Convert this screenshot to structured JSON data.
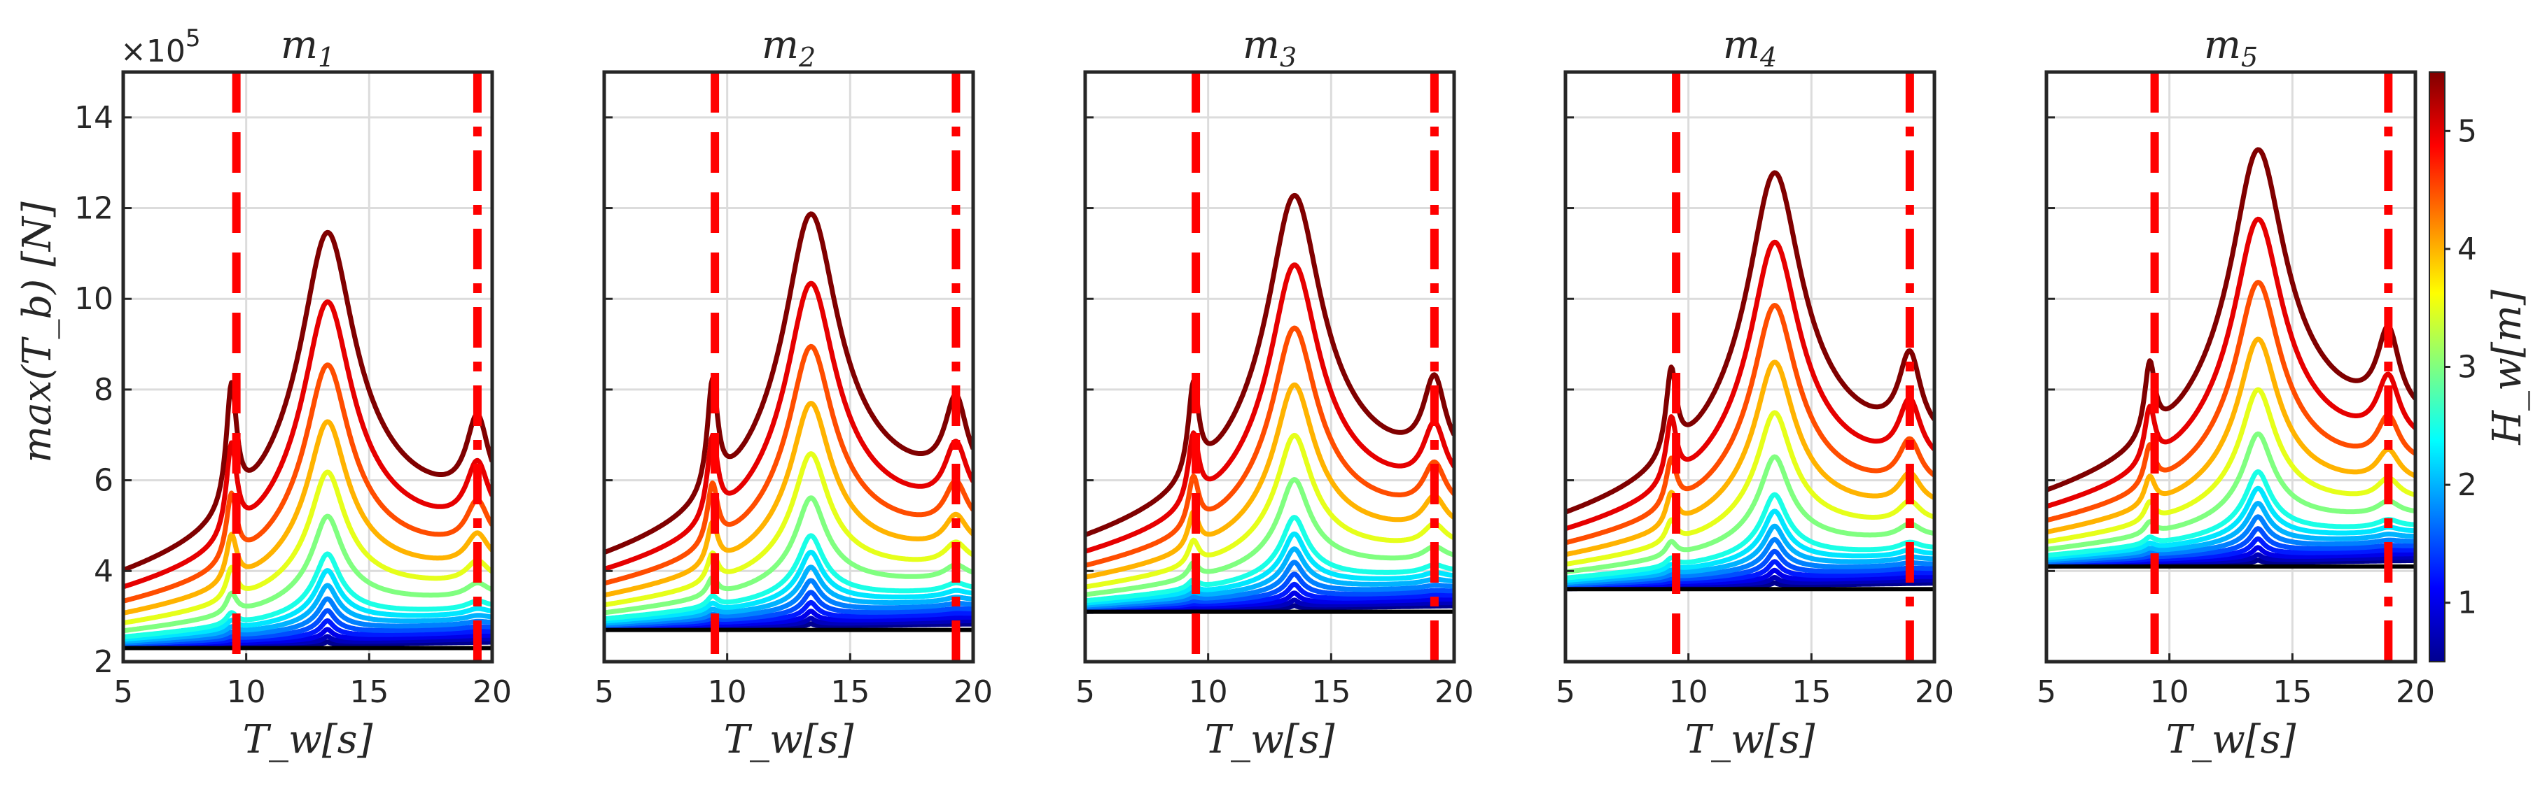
{
  "figure": {
    "y_multiplier_base": "×10",
    "y_multiplier_exp": "5",
    "ylabel": "max(T_b)  [N]",
    "xlabel": "T_w[s]"
  },
  "colorbar": {
    "label": "H_w[m]",
    "range": [
      0.5,
      5.5
    ],
    "ticks": [
      "1",
      "2",
      "3",
      "4",
      "5"
    ],
    "colormap": [
      "#00008f",
      "#0000ff",
      "#0080ff",
      "#00ffff",
      "#80ff80",
      "#ffff00",
      "#ff8000",
      "#ff0000",
      "#800000"
    ]
  },
  "colors": {
    "reference_line": "#ff0000",
    "baseline": "#000000",
    "grid": "#dcdcdc",
    "axes": "#262626"
  },
  "chart_data": [
    {
      "type": "line",
      "title": "m1",
      "title_main": "m",
      "title_sub": "1",
      "xlabel": "T_w[s]",
      "ylabel": "max(T_b) [N]",
      "xlim": [
        5,
        20
      ],
      "ylim": [
        2,
        15
      ],
      "xticks": [
        "5",
        "10",
        "15",
        "20"
      ],
      "yticks": [
        "2",
        "4",
        "6",
        "8",
        "10",
        "12",
        "14"
      ],
      "baseline": 2.3,
      "resonance_Tw": 13.3,
      "peak_Tw": 9.4,
      "peak_height": 1.0,
      "vline_dashed": 9.6,
      "vline_dashdot": 19.4,
      "series_Hw": [
        0.5,
        0.75,
        1.0,
        1.25,
        1.5,
        1.75,
        2.0,
        2.25,
        2.5,
        3.0,
        3.5,
        4.0,
        4.5,
        5.0,
        5.5
      ]
    },
    {
      "type": "line",
      "title": "m2",
      "title_main": "m",
      "title_sub": "2",
      "xlabel": "T_w[s]",
      "ylabel": "max(T_b) [N]",
      "xlim": [
        5,
        20
      ],
      "ylim": [
        2,
        15
      ],
      "xticks": [
        "5",
        "10",
        "15",
        "20"
      ],
      "yticks": [],
      "baseline": 2.7,
      "resonance_Tw": 13.4,
      "peak_Tw": 9.4,
      "peak_height": 0.9,
      "vline_dashed": 9.5,
      "vline_dashdot": 19.3,
      "series_Hw": [
        0.5,
        0.75,
        1.0,
        1.25,
        1.5,
        1.75,
        2.0,
        2.25,
        2.5,
        3.0,
        3.5,
        4.0,
        4.5,
        5.0,
        5.5
      ]
    },
    {
      "type": "line",
      "title": "m3",
      "title_main": "m",
      "title_sub": "3",
      "xlabel": "T_w[s]",
      "ylabel": "max(T_b) [N]",
      "xlim": [
        5,
        20
      ],
      "ylim": [
        2,
        15
      ],
      "xticks": [
        "5",
        "10",
        "15",
        "20"
      ],
      "yticks": [],
      "baseline": 3.1,
      "resonance_Tw": 13.5,
      "peak_Tw": 9.4,
      "peak_height": 0.75,
      "vline_dashed": 9.5,
      "vline_dashdot": 19.2,
      "series_Hw": [
        0.5,
        0.75,
        1.0,
        1.25,
        1.5,
        1.75,
        2.0,
        2.25,
        2.5,
        3.0,
        3.5,
        4.0,
        4.5,
        5.0,
        5.5
      ]
    },
    {
      "type": "line",
      "title": "m4",
      "title_main": "m",
      "title_sub": "4",
      "xlabel": "T_w[s]",
      "ylabel": "max(T_b) [N]",
      "xlim": [
        5,
        20
      ],
      "ylim": [
        2,
        15
      ],
      "xticks": [
        "5",
        "10",
        "15",
        "20"
      ],
      "yticks": [],
      "baseline": 3.6,
      "resonance_Tw": 13.5,
      "peak_Tw": 9.3,
      "peak_height": 0.7,
      "vline_dashed": 9.5,
      "vline_dashdot": 19.0,
      "series_Hw": [
        0.5,
        0.75,
        1.0,
        1.25,
        1.5,
        1.75,
        2.0,
        2.25,
        2.5,
        3.0,
        3.5,
        4.0,
        4.5,
        5.0,
        5.5
      ]
    },
    {
      "type": "line",
      "title": "m5",
      "title_main": "m",
      "title_sub": "5",
      "xlabel": "T_w[s]",
      "ylabel": "max(T_b) [N]",
      "xlim": [
        5,
        20
      ],
      "ylim": [
        2,
        15
      ],
      "xticks": [
        "5",
        "10",
        "15",
        "20"
      ],
      "yticks": [],
      "baseline": 4.1,
      "resonance_Tw": 13.6,
      "peak_Tw": 9.2,
      "peak_height": 0.6,
      "vline_dashed": 9.4,
      "vline_dashdot": 18.9,
      "series_Hw": [
        0.5,
        0.75,
        1.0,
        1.25,
        1.5,
        1.75,
        2.0,
        2.25,
        2.5,
        3.0,
        3.5,
        4.0,
        4.5,
        5.0,
        5.5
      ]
    }
  ]
}
